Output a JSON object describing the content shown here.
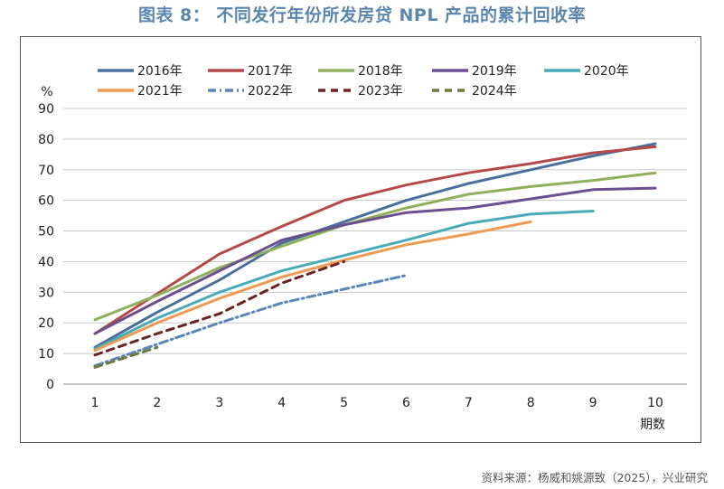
{
  "page": {
    "title": "图表 8： 不同发行年份所发房贷 NPL 产品的累计回收率",
    "source": "资料来源：杨威和姚源致（2025），兴业研究"
  },
  "chart_data": {
    "type": "line",
    "title": "图表 8： 不同发行年份所发房贷 NPL 产品的累计回收率",
    "xlabel": "期数",
    "ylabel": "%",
    "x": [
      1,
      2,
      3,
      4,
      5,
      6,
      7,
      8,
      9,
      10
    ],
    "xlim": [
      1,
      10
    ],
    "ylim": [
      0,
      90
    ],
    "yticks": [
      0,
      10,
      20,
      30,
      40,
      50,
      60,
      70,
      80,
      90
    ],
    "grid": true,
    "legend": "top",
    "series": [
      {
        "name": "2016年",
        "color": "#4a6f9c",
        "dash": "solid",
        "x": [
          1,
          2,
          3,
          4,
          5,
          6,
          7,
          8,
          9,
          10
        ],
        "values": [
          12,
          23.5,
          34,
          46,
          53,
          60,
          65.5,
          70,
          74.5,
          78.5
        ]
      },
      {
        "name": "2017年",
        "color": "#b54848",
        "dash": "solid",
        "x": [
          1,
          2,
          3,
          4,
          5,
          6,
          7,
          8,
          9,
          10
        ],
        "values": [
          16.5,
          29.5,
          42.5,
          51.5,
          60,
          65,
          69,
          72,
          75.5,
          77.5
        ]
      },
      {
        "name": "2018年",
        "color": "#8db05c",
        "dash": "solid",
        "x": [
          1,
          2,
          3,
          4,
          5,
          6,
          7,
          8,
          9,
          10
        ],
        "values": [
          21,
          29,
          38,
          45,
          52,
          57.5,
          62,
          64.5,
          66.5,
          69
        ]
      },
      {
        "name": "2019年",
        "color": "#6b4f8e",
        "dash": "solid",
        "x": [
          1,
          2,
          3,
          4,
          5,
          6,
          7,
          8,
          9,
          10
        ],
        "values": [
          16.5,
          27,
          37,
          47,
          52,
          56,
          57.5,
          60.5,
          63.5,
          64
        ]
      },
      {
        "name": "2020年",
        "color": "#4aabb8",
        "dash": "solid",
        "x": [
          1,
          2,
          3,
          4,
          5,
          6,
          7,
          8,
          9
        ],
        "values": [
          11.5,
          21.5,
          30,
          37,
          42,
          47,
          52.5,
          55.5,
          56.5
        ]
      },
      {
        "name": "2021年",
        "color": "#ee9a52",
        "dash": "solid",
        "x": [
          1,
          2,
          3,
          4,
          5,
          6,
          7,
          8
        ],
        "values": [
          11,
          20,
          28,
          35,
          40.5,
          45.5,
          49,
          53
        ]
      },
      {
        "name": "2022年",
        "color": "#5b86b8",
        "dash": "dashdot",
        "x": [
          1,
          2,
          3,
          4,
          5,
          6
        ],
        "values": [
          6,
          13,
          20,
          26.5,
          31,
          35.5
        ]
      },
      {
        "name": "2023年",
        "color": "#6b2424",
        "dash": "dash",
        "x": [
          1,
          2,
          3,
          4,
          5
        ],
        "values": [
          9.5,
          16.5,
          23,
          33,
          40
        ]
      },
      {
        "name": "2024年",
        "color": "#6e7a3c",
        "dash": "dash",
        "x": [
          1,
          2
        ],
        "values": [
          5.5,
          12
        ]
      }
    ]
  }
}
